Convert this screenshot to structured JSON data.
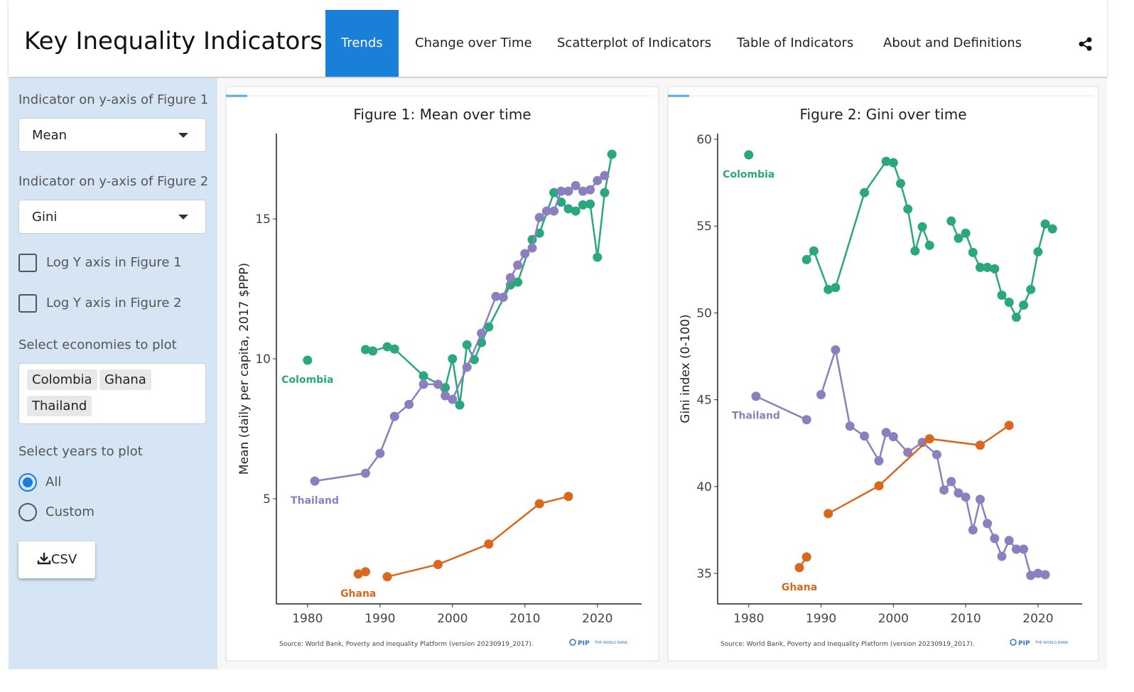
{
  "header": {
    "title": "Key Inequality Indicators",
    "tabs": [
      "Trends",
      "Change over Time",
      "Scatterplot of Indicators",
      "Table of Indicators",
      "About and Definitions"
    ]
  },
  "sidebar": {
    "y1_label": "Indicator on y-axis of Figure 1",
    "y1_value": "Mean",
    "y2_label": "Indicator on y-axis of Figure 2",
    "y2_value": "Gini",
    "log1": "Log Y axis in Figure 1",
    "log2": "Log Y axis in Figure 2",
    "economies_label": "Select economies to plot",
    "economies": [
      "Colombia",
      "Ghana",
      "Thailand"
    ],
    "years_label": "Select years to plot",
    "years_options": [
      "All",
      "Custom"
    ],
    "download": "CSV"
  },
  "chart_data": [
    {
      "type": "line",
      "title": "Figure 1: Mean over time",
      "y_label": "Mean (daily per capita, 2017 $PPP)",
      "source": "Source: World Bank, Poverty and Inequality Platform (version 20230919_2017).",
      "logo": "PIP",
      "logo_org": "THE WORLD BANK",
      "xlim": [
        1975.7,
        2026.1
      ],
      "ylim": [
        1.24,
        18.05
      ],
      "xticks": [
        1980,
        1990,
        2000,
        2010,
        2020
      ],
      "yticks": [
        5,
        10,
        15
      ],
      "series": [
        {
          "name": "Colombia",
          "color": "#2aa77e",
          "x": [
            1980,
            null,
            1988,
            1989,
            1991,
            1992,
            1996,
            1999,
            2000,
            2001,
            2002,
            2003,
            2004,
            2005,
            2008,
            2009,
            2011,
            2012,
            2014,
            2015,
            2016,
            2017,
            2018,
            2019,
            2020,
            2021,
            2022
          ],
          "values": [
            9.95,
            null,
            10.33,
            10.28,
            10.43,
            10.35,
            9.39,
            8.97,
            10.0,
            8.35,
            10.5,
            9.97,
            10.58,
            11.14,
            12.64,
            12.74,
            14.26,
            14.49,
            15.94,
            15.6,
            15.36,
            15.28,
            15.5,
            15.53,
            13.63,
            15.94,
            17.31
          ]
        },
        {
          "name": "Thailand",
          "color": "#8c7fc0",
          "x": [
            1981,
            1988,
            1990,
            1992,
            1994,
            1996,
            1998,
            1999,
            2000,
            2002,
            2004,
            2006,
            2007,
            2008,
            2009,
            2010,
            2011,
            2012,
            2013,
            2014,
            2015,
            2016,
            2017,
            2018,
            2019,
            2020,
            2021
          ],
          "values": [
            5.63,
            5.91,
            6.62,
            7.94,
            8.37,
            9.09,
            9.09,
            8.68,
            8.55,
            9.7,
            10.91,
            12.23,
            12.2,
            12.9,
            13.35,
            13.76,
            13.96,
            15.05,
            15.28,
            15.28,
            15.99,
            15.99,
            16.19,
            15.99,
            16.04,
            16.37,
            16.55
          ]
        },
        {
          "name": "Ghana",
          "color": "#d9671e",
          "x": [
            1987,
            1988,
            null,
            1991,
            1998,
            2005,
            2012,
            2016
          ],
          "values": [
            2.31,
            2.39,
            null,
            2.21,
            2.65,
            3.38,
            4.82,
            5.08
          ]
        }
      ]
    },
    {
      "type": "line",
      "title": "Figure 2: Gini over time",
      "y_label": "Gini index (0-100)",
      "source": "Source: World Bank, Poverty and Inequality Platform (version 20230919_2017).",
      "logo": "PIP",
      "logo_org": "THE WORLD BANK",
      "xlim": [
        1975.7,
        2026.1
      ],
      "ylim": [
        33.24,
        60.33
      ],
      "xticks": [
        1980,
        1990,
        2000,
        2010,
        2020
      ],
      "yticks": [
        35,
        40,
        45,
        50,
        55,
        60
      ],
      "series": [
        {
          "name": "Colombia",
          "color": "#2aa77e",
          "x": [
            1980,
            null,
            1988,
            1989,
            1991,
            1992,
            1996,
            1999,
            2000,
            2001,
            2002,
            2003,
            2004,
            2005,
            null,
            2008,
            2009,
            2010,
            2011,
            2012,
            2013,
            2014,
            2015,
            2016,
            2017,
            2018,
            2019,
            2020,
            2021,
            2022
          ],
          "values": [
            59.1,
            null,
            53.07,
            53.57,
            51.35,
            51.46,
            56.93,
            58.73,
            58.65,
            57.46,
            55.98,
            53.57,
            54.96,
            53.89,
            null,
            55.29,
            54.3,
            54.59,
            53.48,
            52.62,
            52.62,
            52.54,
            51.02,
            50.61,
            49.75,
            50.45,
            51.35,
            53.52,
            55.12,
            54.84
          ]
        },
        {
          "name": "Thailand",
          "color": "#8c7fc0",
          "x": [
            1981,
            1988,
            null,
            1990,
            1992,
            1994,
            1996,
            1998,
            1999,
            2000,
            2002,
            2004,
            2006,
            2007,
            2008,
            2009,
            2010,
            2011,
            2012,
            2013,
            2014,
            2015,
            2016,
            2017,
            2018,
            2019,
            2020,
            2021
          ],
          "values": [
            45.2,
            43.85,
            null,
            45.29,
            47.87,
            43.48,
            42.91,
            41.48,
            43.11,
            42.87,
            41.97,
            42.54,
            41.84,
            39.8,
            40.29,
            39.63,
            39.39,
            37.5,
            39.26,
            37.87,
            37.01,
            35.98,
            36.89,
            36.39,
            36.39,
            34.88,
            35.0,
            34.92
          ]
        },
        {
          "name": "Ghana",
          "color": "#d9671e",
          "x": [
            1987,
            1988,
            null,
            1991,
            1998,
            2005,
            2012,
            2016
          ],
          "values": [
            35.33,
            35.94,
            null,
            38.44,
            40.04,
            42.75,
            42.38,
            43.52
          ]
        }
      ]
    }
  ]
}
